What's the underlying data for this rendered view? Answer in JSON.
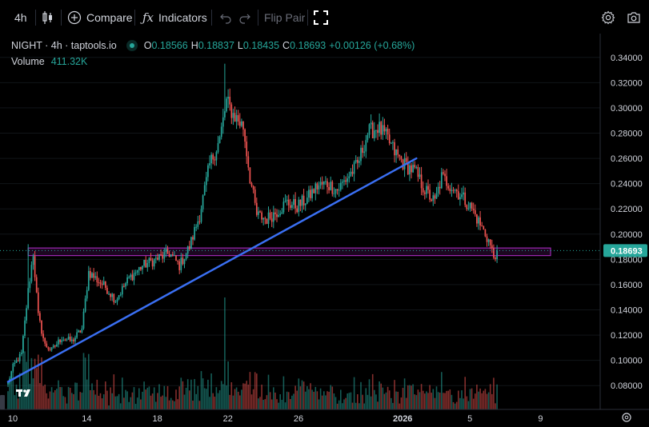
{
  "toolbar": {
    "interval": "4h",
    "compare_label": "Compare",
    "indicators_label": "Indicators",
    "flip_pair_label": "Flip Pair",
    "icons": [
      "candles-icon",
      "plus-circle-icon",
      "fx-icon",
      "undo-icon",
      "redo-icon",
      "fullscreen-icon",
      "gear-icon",
      "camera-icon"
    ]
  },
  "legend": {
    "symbol": "NIGHT · 4h · taptools.io",
    "open_key": "O",
    "open": "0.18566",
    "high_key": "H",
    "high": "0.18837",
    "low_key": "L",
    "low": "0.18435",
    "close_key": "C",
    "close": "0.18693",
    "change": "+0.00126 (+0.68%)",
    "volume_label": "Volume",
    "volume": "411.32K"
  },
  "colors": {
    "background": "#000000",
    "up": "#26a69a",
    "down": "#ef5350",
    "trendline": "#3a6ff2",
    "zone": "#9c27b0",
    "price_tag": "#26a69a"
  },
  "chart_data": {
    "type": "candlestick",
    "y_ticks": [
      "0.34000",
      "0.32000",
      "0.30000",
      "0.28000",
      "0.26000",
      "0.24000",
      "0.22000",
      "0.20000",
      "0.18000",
      "0.16000",
      "0.14000",
      "0.12000",
      "0.10000",
      "0.08000"
    ],
    "ylim": [
      0.07,
      0.35
    ],
    "x_ticks": [
      "10",
      "14",
      "18",
      "22",
      "26",
      "2026",
      "5",
      "9"
    ],
    "last_price": "0.18693",
    "last_price_value": 0.18693,
    "anchors": [
      {
        "i": 0,
        "v": 0.082
      },
      {
        "i": 3,
        "v": 0.095
      },
      {
        "i": 8,
        "v": 0.105
      },
      {
        "i": 12,
        "v": 0.155
      },
      {
        "i": 15,
        "v": 0.185
      },
      {
        "i": 18,
        "v": 0.135
      },
      {
        "i": 22,
        "v": 0.112
      },
      {
        "i": 26,
        "v": 0.108
      },
      {
        "i": 32,
        "v": 0.118
      },
      {
        "i": 38,
        "v": 0.115
      },
      {
        "i": 44,
        "v": 0.125
      },
      {
        "i": 48,
        "v": 0.17
      },
      {
        "i": 52,
        "v": 0.165
      },
      {
        "i": 58,
        "v": 0.158
      },
      {
        "i": 64,
        "v": 0.148
      },
      {
        "i": 72,
        "v": 0.165
      },
      {
        "i": 80,
        "v": 0.175
      },
      {
        "i": 88,
        "v": 0.18
      },
      {
        "i": 96,
        "v": 0.185
      },
      {
        "i": 102,
        "v": 0.175
      },
      {
        "i": 108,
        "v": 0.19
      },
      {
        "i": 114,
        "v": 0.215
      },
      {
        "i": 120,
        "v": 0.255
      },
      {
        "i": 126,
        "v": 0.275
      },
      {
        "i": 130,
        "v": 0.305
      },
      {
        "i": 134,
        "v": 0.295
      },
      {
        "i": 140,
        "v": 0.285
      },
      {
        "i": 144,
        "v": 0.245
      },
      {
        "i": 148,
        "v": 0.215
      },
      {
        "i": 154,
        "v": 0.212
      },
      {
        "i": 160,
        "v": 0.218
      },
      {
        "i": 166,
        "v": 0.225
      },
      {
        "i": 172,
        "v": 0.222
      },
      {
        "i": 178,
        "v": 0.228
      },
      {
        "i": 184,
        "v": 0.238
      },
      {
        "i": 190,
        "v": 0.24
      },
      {
        "i": 196,
        "v": 0.235
      },
      {
        "i": 202,
        "v": 0.245
      },
      {
        "i": 208,
        "v": 0.255
      },
      {
        "i": 214,
        "v": 0.28
      },
      {
        "i": 220,
        "v": 0.285
      },
      {
        "i": 226,
        "v": 0.275
      },
      {
        "i": 230,
        "v": 0.265
      },
      {
        "i": 236,
        "v": 0.255
      },
      {
        "i": 242,
        "v": 0.25
      },
      {
        "i": 248,
        "v": 0.235
      },
      {
        "i": 254,
        "v": 0.225
      },
      {
        "i": 258,
        "v": 0.245
      },
      {
        "i": 264,
        "v": 0.238
      },
      {
        "i": 270,
        "v": 0.23
      },
      {
        "i": 276,
        "v": 0.22
      },
      {
        "i": 282,
        "v": 0.205
      },
      {
        "i": 286,
        "v": 0.195
      },
      {
        "i": 289,
        "v": 0.182
      },
      {
        "i": 291,
        "v": 0.1869
      }
    ],
    "trendline": {
      "start": {
        "i": 0,
        "v": 0.083
      },
      "end": {
        "i": 243,
        "v": 0.26
      }
    },
    "zone": {
      "top": 0.189,
      "bottom": 0.183,
      "from_i": 12,
      "to_i": 324
    }
  }
}
